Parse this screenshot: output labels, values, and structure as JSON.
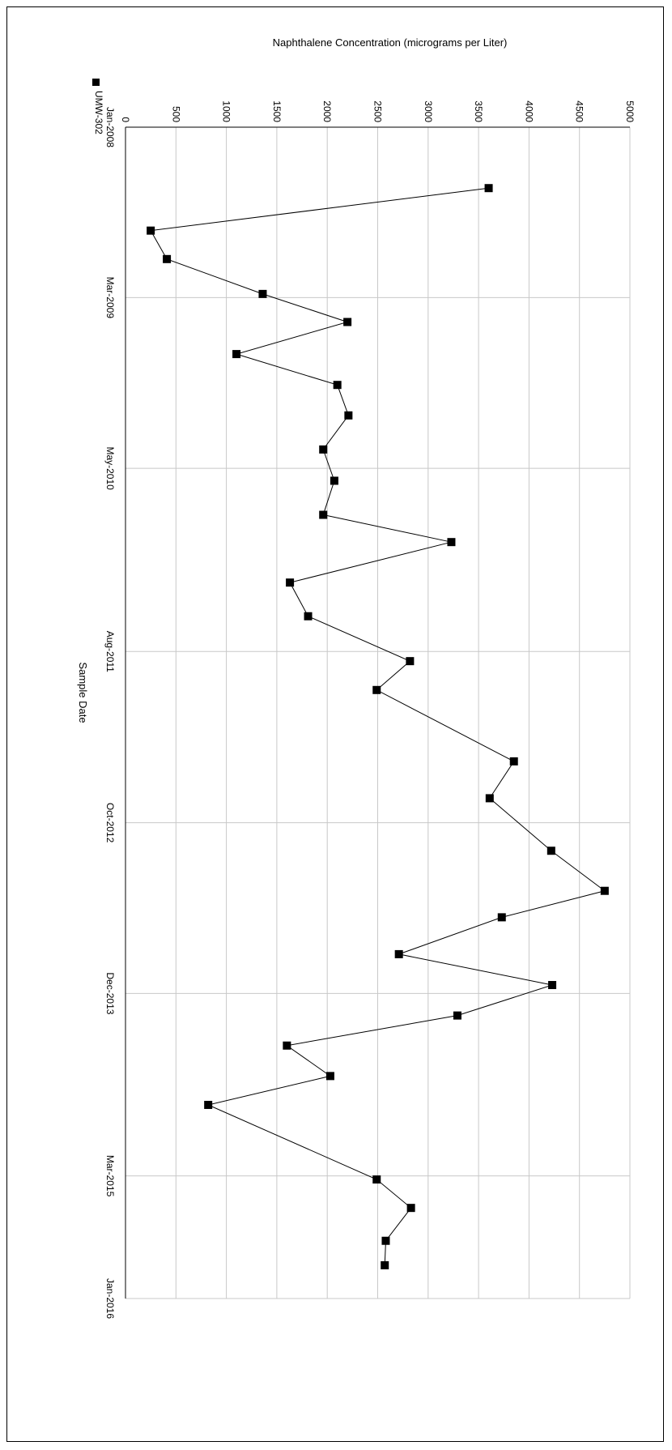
{
  "chart_data": {
    "type": "line",
    "title": "Naphthalene Concentration (micrograms per Liter)",
    "xlabel": "Sample Date",
    "ylabel": "Naphthalene Concentration (micrograms per Liter)",
    "orientation": "rotated-90-clockwise",
    "legend": {
      "position": "top-left",
      "entries": [
        "UMW-302"
      ]
    },
    "grid": true,
    "x_range": [
      "2008-01-01",
      "2016-01-01"
    ],
    "x_ticks": [
      {
        "date": "2008-01-01",
        "label": "Jan-2008"
      },
      {
        "date": "2009-03-01",
        "label": "Mar-2009"
      },
      {
        "date": "2010-05-01",
        "label": "May-2010"
      },
      {
        "date": "2011-08-01",
        "label": "Aug-2011"
      },
      {
        "date": "2012-10-01",
        "label": "Oct-2012"
      },
      {
        "date": "2013-12-01",
        "label": "Dec-2013"
      },
      {
        "date": "2015-03-01",
        "label": "Mar-2015"
      },
      {
        "date": "2016-01-01",
        "label": "Jan-2016"
      }
    ],
    "ylim": [
      0,
      5000
    ],
    "y_ticks": [
      0,
      500,
      1000,
      1500,
      2000,
      2500,
      3000,
      3500,
      4000,
      4500,
      5000
    ],
    "series": [
      {
        "name": "UMW-302",
        "color": "#000000",
        "marker": "square",
        "points": [
          {
            "x": "2008-06-01",
            "y": 3600
          },
          {
            "x": "2008-09-15",
            "y": 250
          },
          {
            "x": "2008-11-25",
            "y": 410
          },
          {
            "x": "2009-02-20",
            "y": 1360
          },
          {
            "x": "2009-05-01",
            "y": 2200
          },
          {
            "x": "2009-07-20",
            "y": 1100
          },
          {
            "x": "2009-10-05",
            "y": 2100
          },
          {
            "x": "2009-12-20",
            "y": 2210
          },
          {
            "x": "2010-03-15",
            "y": 1960
          },
          {
            "x": "2010-06-01",
            "y": 2070
          },
          {
            "x": "2010-08-25",
            "y": 1960
          },
          {
            "x": "2010-11-01",
            "y": 3230
          },
          {
            "x": "2011-02-10",
            "y": 1630
          },
          {
            "x": "2011-05-05",
            "y": 1810
          },
          {
            "x": "2011-08-25",
            "y": 2820
          },
          {
            "x": "2011-11-05",
            "y": 2490
          },
          {
            "x": "2012-05-01",
            "y": 3850
          },
          {
            "x": "2012-08-01",
            "y": 3610
          },
          {
            "x": "2012-12-10",
            "y": 4220
          },
          {
            "x": "2013-03-20",
            "y": 4750
          },
          {
            "x": "2013-05-25",
            "y": 3730
          },
          {
            "x": "2013-08-25",
            "y": 2710
          },
          {
            "x": "2013-11-10",
            "y": 4230
          },
          {
            "x": "2014-01-25",
            "y": 3290
          },
          {
            "x": "2014-04-10",
            "y": 1600
          },
          {
            "x": "2014-06-25",
            "y": 2030
          },
          {
            "x": "2014-09-05",
            "y": 820
          },
          {
            "x": "2015-03-10",
            "y": 2490
          },
          {
            "x": "2015-05-20",
            "y": 2830
          },
          {
            "x": "2015-08-10",
            "y": 2580
          },
          {
            "x": "2015-10-10",
            "y": 2570
          }
        ]
      }
    ]
  }
}
